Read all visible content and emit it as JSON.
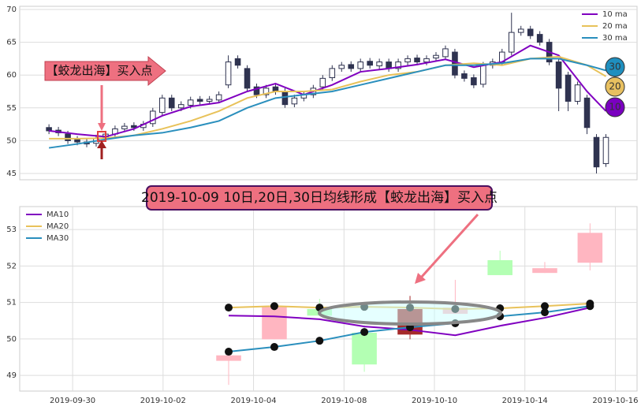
{
  "chart_data": [
    {
      "type": "candlestick",
      "open": [
        52.0,
        51.6,
        51.0,
        50.2,
        49.8,
        49.6,
        50.5,
        51.0,
        51.8,
        52.3,
        52.0,
        52.6,
        54.3,
        56.5,
        55.0,
        55.4,
        56.3,
        56.0,
        56.2,
        58.5,
        62.5,
        61.0,
        58.2,
        57.0,
        58.2,
        57.5,
        55.6,
        56.5,
        57.0,
        58.2,
        59.6,
        61.0,
        61.6,
        61.0,
        62.1,
        61.4,
        62.0,
        61.0,
        62.0,
        62.6,
        62.0,
        62.6,
        62.8,
        63.5,
        60.2,
        59.6,
        58.6,
        61.5,
        62.0,
        63.5,
        66.5,
        67.0,
        66.2,
        65.0,
        62.0,
        60.0,
        56.0,
        56.5,
        50.5,
        46.5
      ],
      "high": [
        52.5,
        52.1,
        51.5,
        50.7,
        50.3,
        50.9,
        51.5,
        52.3,
        52.7,
        52.8,
        53.0,
        55.0,
        57.0,
        57.0,
        56.0,
        56.7,
        56.8,
        56.8,
        57.5,
        63.0,
        63.0,
        61.5,
        58.7,
        58.5,
        58.7,
        58.0,
        57.0,
        57.5,
        58.5,
        60.0,
        61.5,
        62.0,
        62.1,
        62.5,
        62.6,
        62.5,
        62.5,
        62.5,
        63.0,
        63.1,
        63.0,
        63.5,
        64.5,
        64.0,
        60.7,
        60.1,
        62.0,
        62.5,
        64.0,
        69.5,
        67.5,
        67.5,
        66.7,
        65.5,
        62.5,
        60.5,
        59.0,
        57.0,
        51.0,
        51.0
      ],
      "low": [
        51.0,
        50.7,
        49.5,
        49.3,
        49.0,
        49.1,
        50.0,
        50.5,
        51.3,
        51.5,
        51.5,
        52.1,
        53.8,
        54.5,
        54.5,
        54.9,
        55.5,
        55.5,
        55.7,
        58.0,
        61.0,
        57.5,
        56.5,
        56.5,
        57.0,
        55.0,
        55.1,
        56.0,
        56.5,
        57.7,
        59.1,
        60.5,
        60.5,
        60.5,
        61.0,
        60.9,
        60.5,
        60.5,
        61.5,
        61.5,
        61.5,
        62.1,
        62.3,
        59.5,
        59.0,
        58.0,
        58.1,
        61.0,
        61.5,
        63.0,
        66.0,
        65.5,
        64.5,
        61.5,
        54.5,
        54.5,
        55.5,
        51.0,
        45.0,
        46.0
      ],
      "close": [
        51.5,
        51.2,
        50.0,
        49.8,
        49.5,
        50.4,
        51.0,
        51.8,
        52.2,
        52.0,
        52.5,
        54.5,
        56.5,
        55.0,
        55.5,
        56.2,
        56.0,
        56.3,
        57.0,
        62.0,
        61.5,
        58.0,
        57.0,
        58.0,
        57.5,
        55.5,
        56.5,
        57.0,
        58.0,
        59.5,
        61.0,
        61.5,
        61.0,
        62.0,
        61.5,
        62.0,
        61.0,
        62.0,
        62.5,
        62.0,
        62.5,
        63.0,
        64.0,
        60.0,
        59.5,
        58.5,
        61.5,
        62.0,
        63.5,
        66.5,
        67.0,
        66.0,
        65.0,
        62.0,
        58.0,
        56.0,
        58.5,
        52.0,
        46.0,
        50.5
      ],
      "up_color": "#ffffff",
      "down_color": "#2f3350",
      "edge_color": "#2f3350",
      "series": [
        {
          "name": "10 ma",
          "color": "#8000c0",
          "x": [
            0,
            3,
            6,
            9,
            12,
            15,
            18,
            21,
            24,
            27,
            30,
            33,
            36,
            39,
            42,
            45,
            48,
            51,
            54,
            57,
            59
          ],
          "values": [
            51.5,
            51.0,
            50.6,
            51.8,
            53.8,
            55.2,
            55.8,
            57.5,
            58.7,
            57.0,
            58.5,
            60.5,
            61.0,
            61.6,
            62.4,
            61.2,
            62.0,
            64.5,
            63.0,
            57.5,
            54.5
          ]
        },
        {
          "name": "20 ma",
          "color": "#e8c25a",
          "x": [
            0,
            3,
            6,
            9,
            12,
            15,
            18,
            21,
            24,
            27,
            30,
            33,
            36,
            39,
            42,
            45,
            48,
            51,
            54,
            57,
            59
          ],
          "values": [
            50.3,
            50.3,
            50.4,
            50.8,
            51.8,
            53.0,
            54.5,
            56.5,
            57.5,
            57.5,
            57.8,
            59.0,
            60.0,
            60.5,
            61.5,
            61.8,
            61.5,
            62.5,
            62.8,
            61.5,
            59.8
          ]
        },
        {
          "name": "30 ma",
          "color": "#2a8fbd",
          "x": [
            0,
            3,
            6,
            9,
            12,
            15,
            18,
            21,
            24,
            27,
            30,
            33,
            36,
            39,
            42,
            45,
            48,
            51,
            54,
            57,
            59
          ],
          "values": [
            48.9,
            49.5,
            50.2,
            50.8,
            51.2,
            52.0,
            53.0,
            55.0,
            56.5,
            57.0,
            57.5,
            58.5,
            59.5,
            60.5,
            61.5,
            61.5,
            61.8,
            62.5,
            62.5,
            61.5,
            60.7
          ]
        }
      ],
      "xlim": [
        -3.1,
        62.3
      ],
      "ylim": [
        44.04,
        70.48
      ],
      "yticks": [
        45,
        50,
        55,
        60,
        65,
        70
      ],
      "grid": true,
      "legend": "upper right",
      "annotation": "【蛟龙出海】买入点",
      "badges": [
        "30",
        "20",
        "10"
      ]
    },
    {
      "type": "candlestick",
      "x": [
        3.45,
        4.46,
        5.46,
        6.45,
        7.46,
        8.46,
        9.45,
        10.44,
        11.44
      ],
      "open": [
        49.4,
        49.99,
        50.82,
        50.17,
        50.12,
        50.69,
        52.16,
        51.81,
        52.09
      ],
      "high": [
        49.6,
        50.9,
        51.1,
        50.38,
        51.18,
        51.62,
        52.42,
        52.11,
        53.17
      ],
      "low": [
        48.74,
        49.99,
        50.64,
        49.1,
        49.99,
        50.69,
        51.75,
        51.81,
        51.88
      ],
      "close": [
        49.55,
        50.9,
        50.64,
        49.3,
        50.82,
        50.86,
        51.75,
        51.94,
        52.91
      ],
      "colors": [
        "#ffb6c1",
        "#ffb6c1",
        "#b3ffb3",
        "#b3ffb3",
        "#a52a2a",
        "#ffb6c1",
        "#b3ffb3",
        "#ffb6c1",
        "#ffb6c1"
      ],
      "series": [
        {
          "name": "MA10",
          "color": "#8000c0",
          "x": [
            3.45,
            4.46,
            5.46,
            6.45,
            7.46,
            8.46,
            9.45,
            10.44,
            11.44
          ],
          "values": [
            50.64,
            50.62,
            50.54,
            50.34,
            50.25,
            50.1,
            50.36,
            50.58,
            50.86
          ]
        },
        {
          "name": "MA20",
          "color": "#e8c25a",
          "marker": true,
          "x": [
            3.45,
            4.46,
            5.46,
            6.45,
            7.46,
            8.46,
            9.45,
            10.44,
            11.44
          ],
          "values": [
            50.86,
            50.9,
            50.86,
            50.88,
            50.86,
            50.82,
            50.84,
            50.9,
            50.97
          ]
        },
        {
          "name": "MA30",
          "color": "#2a8fbd",
          "marker": true,
          "x": [
            3.45,
            4.46,
            5.46,
            6.45,
            7.46,
            8.46,
            9.45,
            10.44,
            11.44
          ],
          "values": [
            49.65,
            49.78,
            49.95,
            50.19,
            50.32,
            50.43,
            50.62,
            50.73,
            50.9
          ]
        }
      ],
      "xlim": [
        -1.17,
        12.48
      ],
      "ylim": [
        48.57,
        53.63
      ],
      "yticks": [
        49,
        50,
        51,
        52,
        53
      ],
      "xticks": [
        {
          "value": 0,
          "label": "2019-09-30"
        },
        {
          "value": 2,
          "label": "2019-10-02"
        },
        {
          "value": 4,
          "label": "2019-10-04"
        },
        {
          "value": 6,
          "label": "2019-10-08"
        },
        {
          "value": 8,
          "label": "2019-10-10"
        },
        {
          "value": 10,
          "label": "2019-10-14"
        },
        {
          "value": 12,
          "label": "2019-10-16"
        }
      ],
      "grid": true,
      "legend": "upper left",
      "annotation": "2019-10-09 10日,20日,30日均线形成【蛟龙出海】买入点"
    }
  ]
}
